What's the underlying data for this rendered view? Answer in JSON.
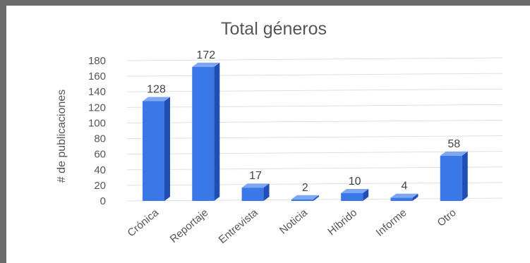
{
  "chart_data": {
    "type": "bar",
    "title": "Total géneros",
    "xlabel": "",
    "ylabel": "# de publicaciones",
    "categories": [
      "Crónica",
      "Reportaje",
      "Entrevista",
      "Noticia",
      "Híbrido",
      "Informe",
      "Otro"
    ],
    "values": [
      128,
      172,
      17,
      2,
      10,
      4,
      58
    ],
    "data_labels": [
      "128",
      "172",
      "17",
      "2",
      "10",
      "4",
      "58"
    ],
    "ylim": [
      0,
      180
    ],
    "yticks": [
      0,
      20,
      40,
      60,
      80,
      100,
      120,
      140,
      160,
      180
    ],
    "grid": true,
    "legend": "none",
    "bar_color": "#3b78e7",
    "bar_side_color": "#1f4fb5",
    "bar_top_color": "#7ea7f2",
    "grid_color": "#e0e0e0",
    "text_color": "#555555"
  }
}
